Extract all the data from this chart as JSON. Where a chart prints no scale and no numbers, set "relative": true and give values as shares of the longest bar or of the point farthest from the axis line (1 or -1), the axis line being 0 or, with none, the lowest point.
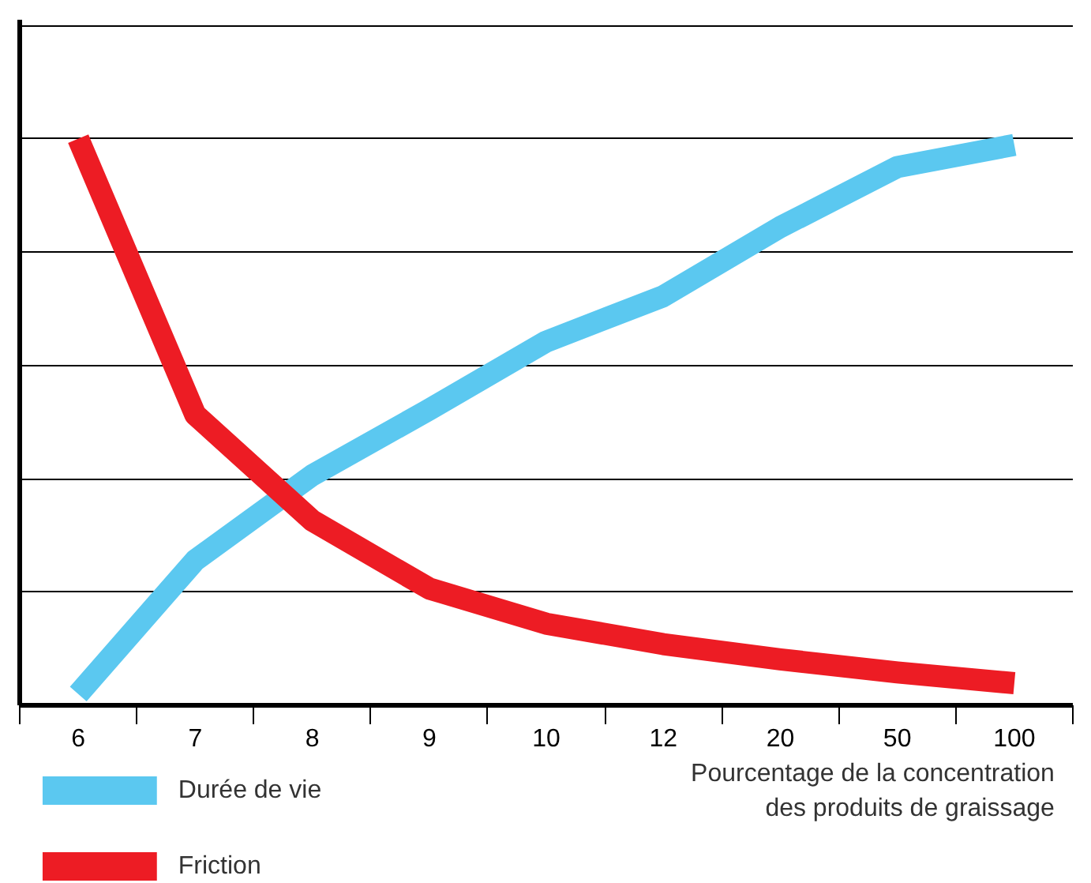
{
  "chart_data": {
    "type": "line",
    "relative": true,
    "xlabel": "Pourcentage de la concentration\ndes produits de graissage",
    "categories": [
      "6",
      "7",
      "8",
      "9",
      "10",
      "12",
      "20",
      "50",
      "100"
    ],
    "grid": "y",
    "legend": "bottom left",
    "line_style": "solid",
    "series": [
      {
        "name": "Durée de vie",
        "color": "#5bc8f0",
        "values": [
          0.02,
          0.256,
          0.406,
          0.522,
          0.642,
          0.722,
          0.844,
          0.95,
          0.989
        ]
      },
      {
        "name": "Friction",
        "color": "#ed1c24",
        "values": [
          1.0,
          0.513,
          0.326,
          0.206,
          0.144,
          0.108,
          0.081,
          0.058,
          0.039
        ]
      }
    ]
  }
}
